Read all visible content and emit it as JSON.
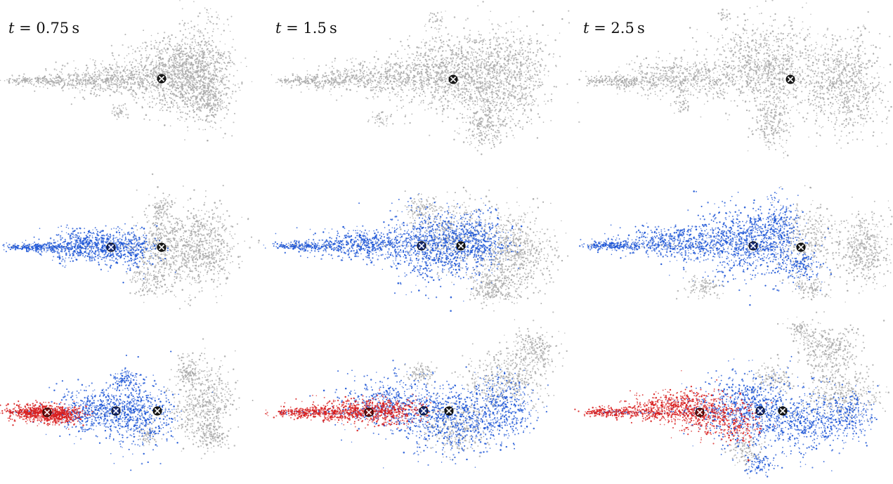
{
  "columns": [
    {
      "variable": "t",
      "equals": " = ",
      "value": "0.75",
      "unit": "s"
    },
    {
      "variable": "t",
      "equals": " = ",
      "value": "1.5",
      "unit": "s"
    },
    {
      "variable": "t",
      "equals": " = ",
      "value": "2.5",
      "unit": "s"
    }
  ],
  "rows": [
    {
      "layers": [
        "gray"
      ]
    },
    {
      "layers": [
        "gray",
        "blue"
      ]
    },
    {
      "layers": [
        "gray",
        "blue",
        "red"
      ]
    }
  ],
  "colors": {
    "gray": "#a9a9a9",
    "blue": "#1f57d6",
    "red": "#d81e1e",
    "marker_fill_gray": "#1a1a1a",
    "marker_fill_blue": "#1b2f7a",
    "marker_fill_red": "#7a1010",
    "marker_cross": "#ffffff"
  },
  "markers": {
    "symbol": "circle-cross",
    "description_icon": "centroid-marker-icon"
  }
}
